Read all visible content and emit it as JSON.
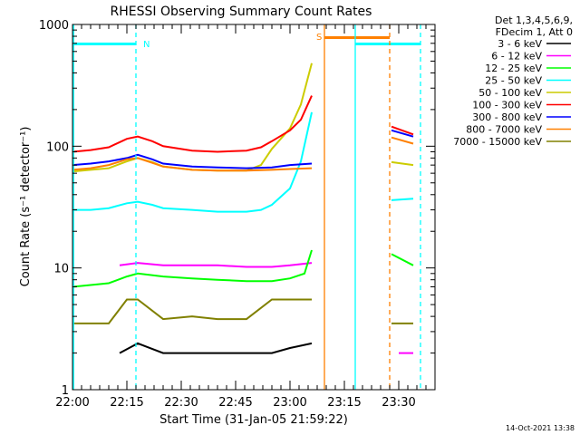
{
  "chart_data": {
    "type": "line",
    "title": "RHESSI Observing Summary Count Rates",
    "xlabel": "Start Time (31-Jan-05 21:59:22)",
    "ylabel": "Count Rate (s⁻¹ detector⁻¹)",
    "yscale": "log",
    "ylim": [
      1,
      1000
    ],
    "xlim_minutes": [
      0,
      100
    ],
    "x_ticks": [
      {
        "label": "22:00",
        "min": 0
      },
      {
        "label": "22:15",
        "min": 15
      },
      {
        "label": "22:30",
        "min": 30
      },
      {
        "label": "22:45",
        "min": 45
      },
      {
        "label": "23:00",
        "min": 60
      },
      {
        "label": "23:15",
        "min": 75
      },
      {
        "label": "23:30",
        "min": 90
      }
    ],
    "y_ticks": [
      {
        "label": "1",
        "value": 1
      },
      {
        "label": "10",
        "value": 10
      },
      {
        "label": "100",
        "value": 100
      },
      {
        "label": "1000",
        "value": 1000
      }
    ],
    "legend": {
      "header": [
        "Det 1,3,4,5,6,9,",
        "FDecim 1, Att 0"
      ],
      "placement": "right"
    },
    "series": [
      {
        "name": "3 - 6 keV",
        "color": "#000000",
        "x": [
          13,
          18,
          25,
          33,
          40,
          48,
          55,
          60,
          66
        ],
        "y": [
          2.0,
          2.4,
          2.0,
          2.0,
          2.0,
          2.0,
          2.0,
          2.2,
          2.4
        ]
      },
      {
        "name": "6 - 12 keV",
        "color": "#ff00ff",
        "x": [
          13,
          18,
          25,
          33,
          40,
          48,
          55,
          60,
          66,
          90,
          94
        ],
        "y": [
          10.5,
          11,
          10.5,
          10.5,
          10.5,
          10.2,
          10.2,
          10.5,
          11,
          2.0,
          2.0
        ]
      },
      {
        "name": "12 - 25 keV",
        "color": "#00ff00",
        "x": [
          0,
          10,
          15,
          18,
          25,
          33,
          40,
          48,
          55,
          60,
          64,
          66,
          88,
          94
        ],
        "y": [
          7,
          7.5,
          8.5,
          9,
          8.5,
          8.2,
          8.0,
          7.8,
          7.8,
          8.2,
          9,
          14,
          13,
          10.5
        ]
      },
      {
        "name": "25 - 50 keV",
        "color": "#00ffff",
        "x": [
          0,
          5,
          10,
          15,
          18,
          22,
          25,
          33,
          40,
          48,
          52,
          55,
          60,
          63,
          66,
          88,
          94
        ],
        "y": [
          30,
          30,
          31,
          34,
          35,
          33,
          31,
          30,
          29,
          29,
          30,
          33,
          45,
          75,
          190,
          36,
          37
        ]
      },
      {
        "name": "50 - 100 keV",
        "color": "#cccc00",
        "x": [
          0,
          5,
          10,
          15,
          18,
          22,
          25,
          33,
          40,
          48,
          52,
          55,
          60,
          63,
          66,
          88,
          94
        ],
        "y": [
          62,
          64,
          66,
          75,
          80,
          74,
          68,
          64,
          63,
          63,
          70,
          95,
          140,
          220,
          480,
          74,
          70
        ]
      },
      {
        "name": "100 - 300 keV",
        "color": "#ff0000",
        "x": [
          0,
          5,
          10,
          15,
          18,
          22,
          25,
          33,
          40,
          48,
          52,
          55,
          60,
          63,
          66,
          88,
          94
        ],
        "y": [
          90,
          93,
          98,
          115,
          120,
          110,
          100,
          92,
          90,
          92,
          98,
          110,
          135,
          165,
          260,
          145,
          125
        ]
      },
      {
        "name": "300 - 800 keV",
        "color": "#0000ff",
        "x": [
          0,
          5,
          10,
          15,
          18,
          22,
          25,
          33,
          40,
          48,
          55,
          60,
          66,
          88,
          94
        ],
        "y": [
          70,
          72,
          75,
          80,
          85,
          78,
          72,
          68,
          67,
          66,
          67,
          70,
          72,
          135,
          120
        ]
      },
      {
        "name": "800 - 7000 keV",
        "color": "#ff8000",
        "x": [
          0,
          5,
          10,
          15,
          18,
          22,
          25,
          33,
          40,
          48,
          55,
          60,
          66,
          88,
          94
        ],
        "y": [
          64,
          66,
          70,
          78,
          80,
          73,
          68,
          64,
          63,
          63,
          64,
          65,
          66,
          118,
          105
        ]
      },
      {
        "name": "7000 - 15000 keV",
        "color": "#808000",
        "x": [
          0,
          10,
          15,
          18,
          25,
          33,
          40,
          48,
          55,
          60,
          66,
          88,
          94
        ],
        "y": [
          3.5,
          3.5,
          5.5,
          5.5,
          3.8,
          4.0,
          3.8,
          3.8,
          5.5,
          5.5,
          5.5,
          3.5,
          3.5
        ]
      }
    ],
    "annotations": [
      {
        "label": "N",
        "color": "#00ffff"
      },
      {
        "label": "S",
        "color": "#ff8000"
      }
    ],
    "footer_date": "14-Oct-2021 13:38"
  }
}
